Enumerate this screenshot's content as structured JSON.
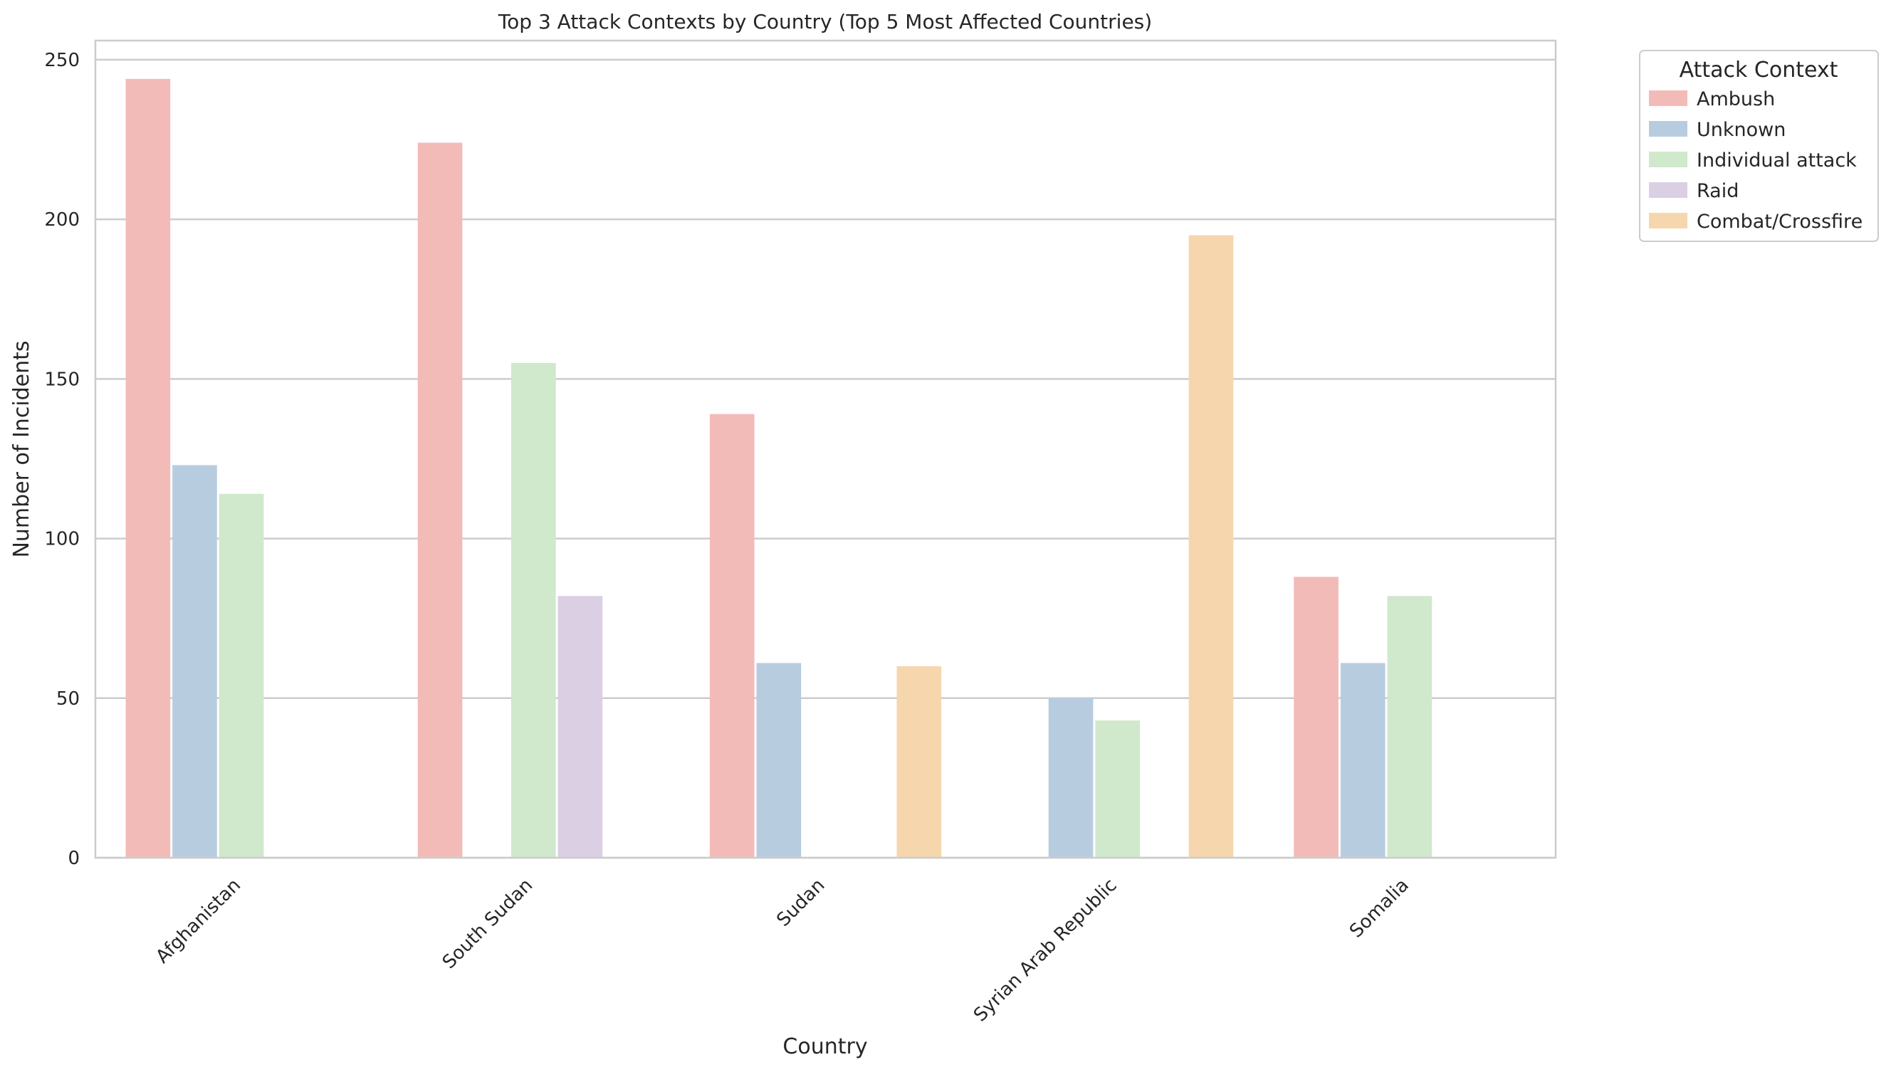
{
  "chart_data": {
    "type": "bar",
    "title": "Top 3 Attack Contexts by Country (Top 5 Most Affected Countries)",
    "xlabel": "Country",
    "ylabel": "Number of Incidents",
    "ylim": [
      0,
      256
    ],
    "yticks": [
      0,
      50,
      100,
      150,
      200,
      250
    ],
    "grid": "horizontal",
    "legend_title": "Attack Context",
    "legend_placement": "outside top-right",
    "categories": [
      "Afghanistan",
      "South Sudan",
      "Sudan",
      "Syrian Arab Republic",
      "Somalia"
    ],
    "series": [
      {
        "name": "Ambush",
        "color": "#f2bbb8",
        "values": [
          244,
          224,
          139,
          null,
          88
        ]
      },
      {
        "name": "Unknown",
        "color": "#b8cce0",
        "values": [
          123,
          null,
          61,
          50,
          61
        ]
      },
      {
        "name": "Individual attack",
        "color": "#d0e8cc",
        "values": [
          114,
          155,
          null,
          43,
          82
        ]
      },
      {
        "name": "Raid",
        "color": "#dbcfe3",
        "values": [
          null,
          82,
          null,
          null,
          null
        ]
      },
      {
        "name": "Combat/Crossfire",
        "color": "#f5d6ad",
        "values": [
          null,
          null,
          60,
          195,
          null
        ]
      }
    ]
  }
}
